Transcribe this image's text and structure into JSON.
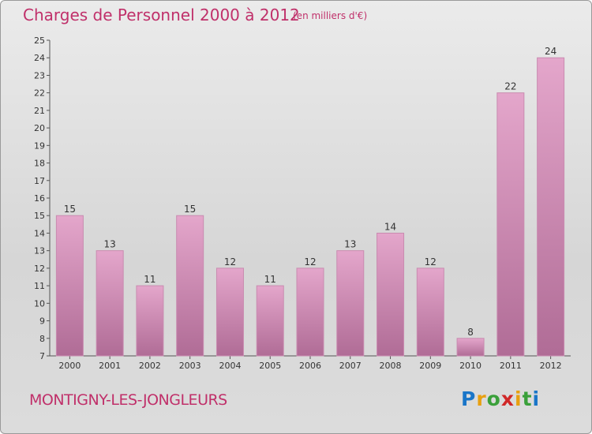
{
  "header": {
    "title": "Charges de Personnel 2000 à 2012",
    "subtitle": "(en milliers d'€)"
  },
  "footer": {
    "city": "MONTIGNY-LES-JONGLEURS",
    "logo_letters": [
      "P",
      "r",
      "o",
      "x",
      "i",
      "t",
      "i"
    ],
    "logo_colors": [
      "#1a76c8",
      "#e8a010",
      "#3aa03a",
      "#d02828",
      "#e8a010",
      "#3aa03a",
      "#1a76c8"
    ]
  },
  "colors": {
    "bar_top": "#e4a6cb",
    "bar_bottom": "#b06c96",
    "text_accent": "#c0306a"
  },
  "chart_data": {
    "type": "bar",
    "categories": [
      "2000",
      "2001",
      "2002",
      "2003",
      "2004",
      "2005",
      "2006",
      "2007",
      "2008",
      "2009",
      "2010",
      "2011",
      "2012"
    ],
    "values": [
      15,
      13,
      11,
      15,
      12,
      11,
      12,
      13,
      14,
      12,
      8,
      22,
      24
    ],
    "ylim": [
      7,
      25
    ],
    "yticks": [
      7,
      8,
      9,
      10,
      11,
      12,
      13,
      14,
      15,
      16,
      17,
      18,
      19,
      20,
      21,
      22,
      23,
      24,
      25
    ],
    "grid": false
  }
}
